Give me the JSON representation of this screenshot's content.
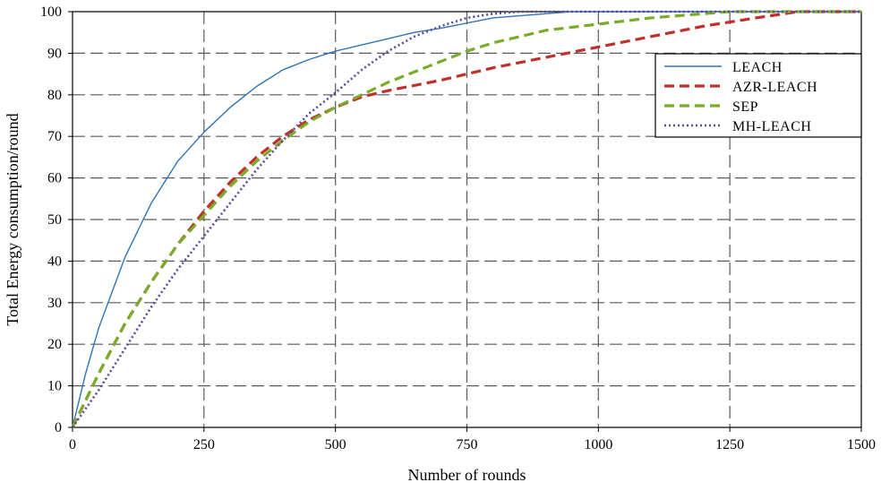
{
  "chart_data": {
    "type": "line",
    "title": "",
    "xlabel": "Number of rounds",
    "ylabel": "Total Energy consumption/round",
    "xlim": [
      0,
      1500
    ],
    "ylim": [
      0,
      100
    ],
    "x_ticks": [
      "0",
      "250",
      "500",
      "750",
      "1000",
      "1250",
      "1500"
    ],
    "y_ticks": [
      "0",
      "10",
      "20",
      "30",
      "40",
      "50",
      "60",
      "70",
      "80",
      "90",
      "100"
    ],
    "grid": true,
    "legend_position": "top-right",
    "series": [
      {
        "name": "LEACH",
        "color": "#2f75b5",
        "style": "solid",
        "x": [
          0,
          25,
          50,
          100,
          150,
          200,
          250,
          300,
          350,
          400,
          450,
          500,
          600,
          650,
          700,
          800,
          900,
          950,
          1000,
          1500
        ],
        "y": [
          0,
          13,
          24,
          41,
          54,
          64,
          71,
          77,
          82,
          86,
          88.5,
          90.5,
          93.5,
          95,
          96,
          98.5,
          99.5,
          100,
          100,
          100
        ]
      },
      {
        "name": "AZR-LEACH",
        "color": "#c0302a",
        "style": "dashed",
        "x": [
          0,
          50,
          100,
          150,
          200,
          250,
          300,
          350,
          400,
          450,
          500,
          550,
          600,
          700,
          800,
          900,
          1000,
          1100,
          1200,
          1250,
          1300,
          1380,
          1500
        ],
        "y": [
          0,
          13,
          25,
          35,
          44,
          52,
          59,
          65,
          70,
          74,
          77,
          79.5,
          81,
          83.5,
          86.5,
          89,
          91.5,
          94,
          96.5,
          97.5,
          98.5,
          100,
          100
        ]
      },
      {
        "name": "SEP",
        "color": "#7aac2a",
        "style": "dashed",
        "x": [
          0,
          50,
          100,
          150,
          200,
          250,
          300,
          350,
          400,
          450,
          500,
          550,
          600,
          650,
          700,
          750,
          800,
          900,
          1000,
          1100,
          1200,
          1250,
          1300,
          1500
        ],
        "y": [
          0,
          13,
          25,
          35,
          44,
          51,
          58,
          64,
          69,
          73.5,
          77,
          80,
          83,
          85.5,
          88,
          90.5,
          92.5,
          95.5,
          97,
          98.5,
          99.5,
          100,
          100,
          100
        ]
      },
      {
        "name": "MH-LEACH",
        "color": "#5b4a9a",
        "style": "dotted",
        "x": [
          0,
          50,
          100,
          150,
          200,
          250,
          300,
          350,
          400,
          450,
          500,
          550,
          600,
          650,
          700,
          750,
          800,
          850,
          900,
          950,
          1500
        ],
        "y": [
          0,
          9,
          19,
          29,
          38,
          46,
          54,
          62,
          69,
          75.5,
          80.5,
          86,
          90.5,
          94,
          96.5,
          98.5,
          99.5,
          100,
          100,
          100,
          100
        ]
      }
    ]
  }
}
